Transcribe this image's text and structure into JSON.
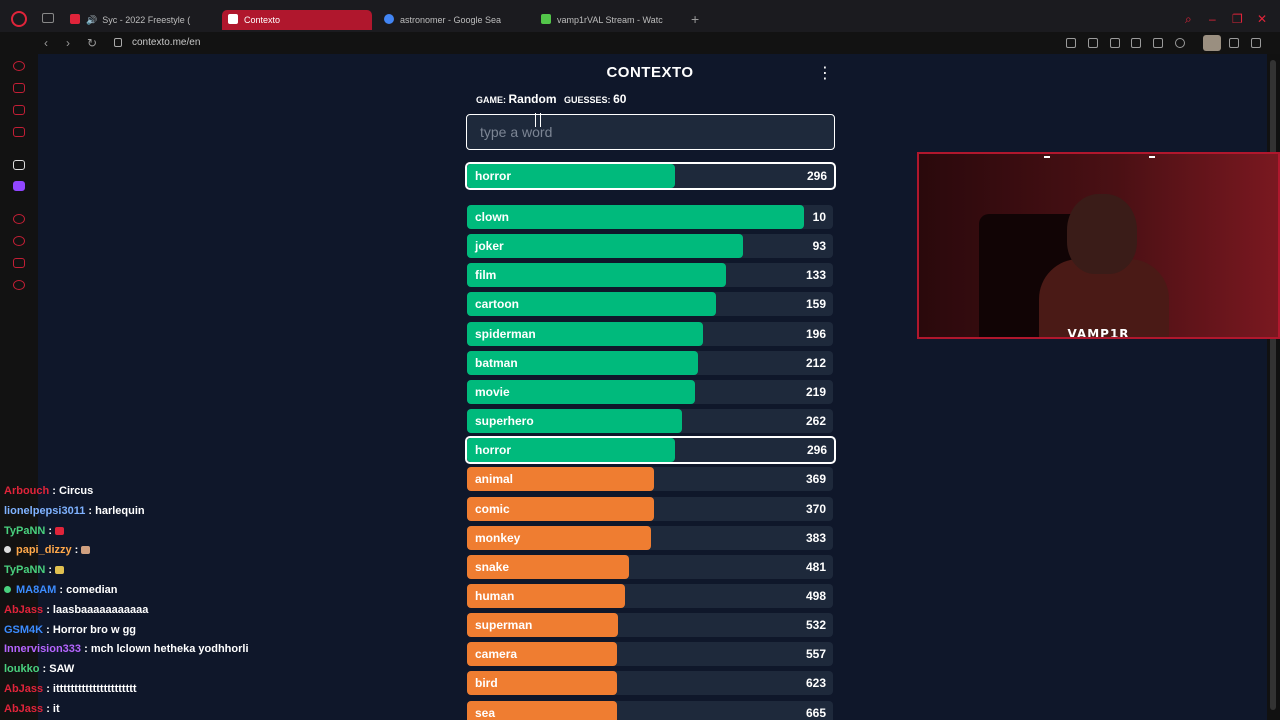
{
  "browser": {
    "tabs": [
      {
        "label": "Syc - 2022 Freestyle (",
        "favicon_color": "#e0243a"
      },
      {
        "label": "Contexto",
        "favicon_color": "#ffffff",
        "active": true
      },
      {
        "label": "astronomer - Google Sea",
        "favicon_color": "#4285f4"
      },
      {
        "label": "vamp1rVAL Stream - Watc",
        "favicon_color": "#53c64a"
      }
    ],
    "new_tab_label": "+",
    "url": "contexto.me/en",
    "accent_color": "#b0172d"
  },
  "game": {
    "title": "CONTEXTO",
    "menu_glyph": "⋮",
    "mode_label": "GAME:",
    "mode_value": "Random",
    "guesses_label": "GUESSES:",
    "guesses_value": "60",
    "input_placeholder": "type a word",
    "last_guess": {
      "word": "horror",
      "rank": 296
    },
    "guesses": [
      {
        "word": "clown",
        "rank": 10
      },
      {
        "word": "joker",
        "rank": 93
      },
      {
        "word": "film",
        "rank": 133
      },
      {
        "word": "cartoon",
        "rank": 159
      },
      {
        "word": "spiderman",
        "rank": 196
      },
      {
        "word": "batman",
        "rank": 212
      },
      {
        "word": "movie",
        "rank": 219
      },
      {
        "word": "superhero",
        "rank": 262
      },
      {
        "word": "horror",
        "rank": 296
      },
      {
        "word": "animal",
        "rank": 369
      },
      {
        "word": "comic",
        "rank": 370
      },
      {
        "word": "monkey",
        "rank": 383
      },
      {
        "word": "snake",
        "rank": 481
      },
      {
        "word": "human",
        "rank": 498
      },
      {
        "word": "superman",
        "rank": 532
      },
      {
        "word": "camera",
        "rank": 557
      },
      {
        "word": "bird",
        "rank": 623
      },
      {
        "word": "sea",
        "rank": 665
      }
    ],
    "colors": {
      "green": "#00ba7c",
      "orange": "#ef7d31",
      "track": "#1e293b"
    }
  },
  "webcam": {
    "streamer_name": "VAMP1R"
  },
  "chat": [
    {
      "user": "Arbouch",
      "text": "Circus",
      "color": "#e0243a"
    },
    {
      "user": "lionelpepsi3011",
      "text": "harlequin",
      "color": "#7fb2ff"
    },
    {
      "user": "TyPaNN",
      "text": "",
      "color": "#49d17e",
      "emote": "#e0243a"
    },
    {
      "user": "papi_dizzy",
      "text": "",
      "color": "#ffa84a",
      "badge": "#dddddd",
      "emote": "#d0a080"
    },
    {
      "user": "TyPaNN",
      "text": "",
      "color": "#49d17e",
      "emote": "#e0c050"
    },
    {
      "user": "MA8AM",
      "text": "comedian",
      "color": "#3c8cff",
      "badge": "#49d17e"
    },
    {
      "user": "AbJass",
      "text": "laasbaaaaaaaaaaa",
      "color": "#e0243a"
    },
    {
      "user": "GSM4K",
      "text": "Horror bro w gg",
      "color": "#3c8cff"
    },
    {
      "user": "Innervision333",
      "text": "mch lclown hetheka yodhhorli",
      "color": "#b565ff"
    },
    {
      "user": "loukko",
      "text": "SAW",
      "color": "#49d17e"
    },
    {
      "user": "AbJass",
      "text": "itttttttttttttttttttttt",
      "color": "#e0243a"
    },
    {
      "user": "AbJass",
      "text": "it",
      "color": "#e0243a"
    }
  ]
}
